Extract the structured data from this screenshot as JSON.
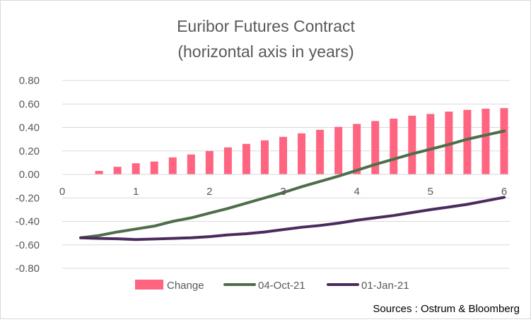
{
  "chart_data": {
    "type": "bar+line",
    "title_line1": "Euribor Futures Contract",
    "title_line2": "(horizontal axis in years)",
    "source": "Sources : Ostrum & Bloomberg",
    "xlim": [
      0,
      6
    ],
    "ylim": [
      -0.8,
      0.8
    ],
    "y_ticks": [
      "0.80",
      "0.60",
      "0.40",
      "0.20",
      "0.00",
      "-0.20",
      "-0.40",
      "-0.60",
      "-0.80"
    ],
    "y_tick_values": [
      0.8,
      0.6,
      0.4,
      0.2,
      0.0,
      -0.2,
      -0.4,
      -0.6,
      -0.8
    ],
    "x_ticks": [
      "0",
      "1",
      "2",
      "3",
      "4",
      "5",
      "6"
    ],
    "x_tick_values": [
      0,
      1,
      2,
      3,
      4,
      5,
      6
    ],
    "grid": "horizontal",
    "legend_position": "bottom",
    "x": [
      0.25,
      0.5,
      0.75,
      1.0,
      1.25,
      1.5,
      1.75,
      2.0,
      2.25,
      2.5,
      2.75,
      3.0,
      3.25,
      3.5,
      3.75,
      4.0,
      4.25,
      4.5,
      4.75,
      5.0,
      5.25,
      5.5,
      5.75,
      6.0
    ],
    "series": [
      {
        "name": "Change",
        "kind": "bar",
        "color": "#ff6481",
        "values": [
          0.0,
          0.03,
          0.065,
          0.095,
          0.11,
          0.145,
          0.17,
          0.2,
          0.23,
          0.26,
          0.29,
          0.32,
          0.35,
          0.38,
          0.405,
          0.43,
          0.455,
          0.475,
          0.5,
          0.515,
          0.535,
          0.55,
          0.56,
          0.565
        ]
      },
      {
        "name": "04-Oct-21",
        "kind": "line",
        "color": "#4e6e4a",
        "values": [
          -0.54,
          -0.52,
          -0.49,
          -0.465,
          -0.44,
          -0.4,
          -0.37,
          -0.33,
          -0.29,
          -0.245,
          -0.2,
          -0.155,
          -0.105,
          -0.06,
          -0.015,
          0.035,
          0.085,
          0.13,
          0.175,
          0.215,
          0.255,
          0.3,
          0.335,
          0.37
        ]
      },
      {
        "name": "01-Jan-21",
        "kind": "line",
        "color": "#4b2a5e",
        "values": [
          -0.54,
          -0.545,
          -0.548,
          -0.555,
          -0.55,
          -0.545,
          -0.54,
          -0.53,
          -0.515,
          -0.505,
          -0.49,
          -0.47,
          -0.45,
          -0.435,
          -0.415,
          -0.39,
          -0.37,
          -0.35,
          -0.325,
          -0.3,
          -0.278,
          -0.255,
          -0.225,
          -0.195
        ]
      }
    ]
  }
}
